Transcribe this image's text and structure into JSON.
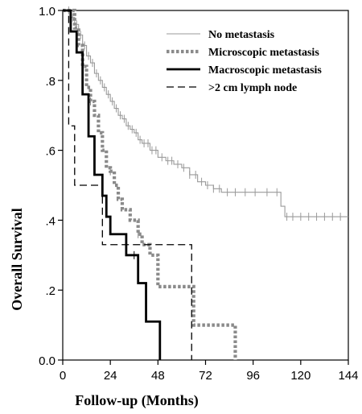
{
  "chart_data": {
    "type": "line",
    "subtype": "kaplan-meier step",
    "xlabel": "Follow-up (Months)",
    "ylabel": "Overall Survival",
    "xlim": [
      0,
      144
    ],
    "ylim": [
      0,
      1
    ],
    "x_ticks": [
      0,
      24,
      48,
      72,
      96,
      120,
      144
    ],
    "x_tick_labels": [
      "0",
      "24",
      "48",
      "72",
      "96",
      "120",
      "144"
    ],
    "y_ticks": [
      0,
      0.2,
      0.4,
      0.6,
      0.8,
      1.0
    ],
    "y_tick_labels": [
      "0.0",
      ".2",
      ".4",
      ".6",
      ".8",
      "1.0"
    ],
    "grid": false,
    "legend_position": "top-right",
    "series": [
      {
        "name": "No metastasis",
        "color": "#9a9a9a",
        "style": "solid-thin",
        "x": [
          0,
          4,
          6,
          8,
          10,
          12,
          14,
          16,
          18,
          20,
          22,
          24,
          26,
          28,
          30,
          32,
          34,
          36,
          38,
          40,
          44,
          48,
          52,
          56,
          60,
          64,
          68,
          72,
          76,
          80,
          90,
          100,
          110,
          112,
          144
        ],
        "y": [
          1.0,
          0.98,
          0.96,
          0.93,
          0.9,
          0.87,
          0.85,
          0.82,
          0.8,
          0.78,
          0.76,
          0.74,
          0.72,
          0.7,
          0.69,
          0.67,
          0.66,
          0.65,
          0.63,
          0.62,
          0.6,
          0.58,
          0.57,
          0.56,
          0.55,
          0.53,
          0.51,
          0.5,
          0.49,
          0.48,
          0.48,
          0.48,
          0.44,
          0.41,
          0.41
        ],
        "censor_x": [
          3,
          5,
          7,
          9,
          11,
          13,
          15,
          17,
          19,
          21,
          23,
          25,
          27,
          29,
          31,
          33,
          35,
          37,
          39,
          41,
          43,
          45,
          47,
          50,
          53,
          55,
          58,
          61,
          64,
          67,
          70,
          73,
          76,
          79,
          83,
          87,
          92,
          97,
          103,
          108,
          113,
          116,
          120,
          124,
          128,
          132,
          136,
          140
        ]
      },
      {
        "name": "Microscopic metastasis",
        "color": "#8a8a8a",
        "style": "dotted-thick",
        "x": [
          0,
          6,
          8,
          10,
          12,
          14,
          16,
          18,
          20,
          22,
          24,
          26,
          28,
          30,
          34,
          38,
          40,
          44,
          48,
          65,
          66,
          86,
          87
        ],
        "y": [
          1.0,
          0.95,
          0.9,
          0.84,
          0.78,
          0.74,
          0.7,
          0.65,
          0.6,
          0.55,
          0.54,
          0.5,
          0.46,
          0.43,
          0.4,
          0.36,
          0.33,
          0.3,
          0.21,
          0.21,
          0.1,
          0.1,
          0.0
        ],
        "censor_x": [
          14,
          24,
          38
        ]
      },
      {
        "name": "Macroscopic metastasis",
        "color": "#000000",
        "style": "solid-thick",
        "x": [
          0,
          4,
          7,
          10,
          13,
          16,
          20,
          22,
          24,
          28,
          32,
          36,
          38,
          42,
          46,
          49
        ],
        "y": [
          1.0,
          0.94,
          0.88,
          0.76,
          0.64,
          0.53,
          0.47,
          0.41,
          0.36,
          0.36,
          0.3,
          0.3,
          0.22,
          0.11,
          0.11,
          0.0
        ],
        "censor_x": [
          36
        ]
      },
      {
        "name": ">2 cm lymph node",
        "color": "#000000",
        "style": "dashed",
        "x": [
          0,
          3,
          6,
          10,
          20,
          65,
          65
        ],
        "y": [
          1.0,
          0.67,
          0.5,
          0.5,
          0.33,
          0.33,
          0.0
        ],
        "censor_x": []
      }
    ]
  }
}
